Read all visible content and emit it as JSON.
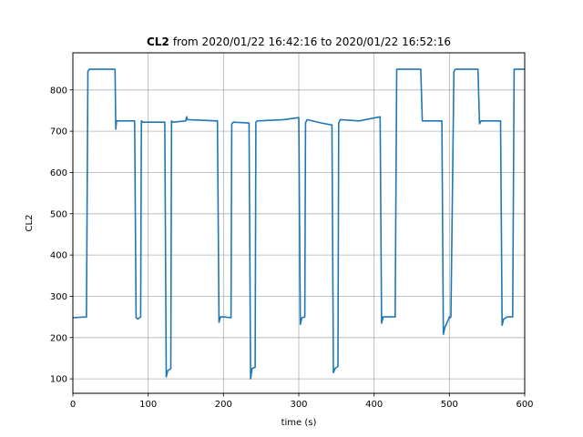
{
  "chart_data": {
    "type": "line",
    "title_bold": "CL2",
    "title_rest": "from 2020/01/22 16:42:16 to 2020/01/22 16:52:16",
    "xlabel": "time (s)",
    "ylabel": "CL2",
    "xlim": [
      0,
      600
    ],
    "ylim": [
      65,
      890
    ],
    "xticks": [
      0,
      100,
      200,
      300,
      400,
      500,
      600
    ],
    "yticks": [
      100,
      200,
      300,
      400,
      500,
      600,
      700,
      800
    ],
    "grid": true,
    "line_color": "#1f77b4",
    "series": [
      {
        "x": [
          0,
          18,
          20,
          22,
          56,
          57,
          58,
          82,
          84,
          86,
          90,
          91,
          93,
          122,
          124,
          126,
          130,
          131,
          133,
          150,
          151,
          152,
          192,
          194,
          196,
          200,
          210,
          211,
          213,
          234,
          236,
          238,
          242,
          243,
          245,
          280,
          300,
          302,
          304,
          308,
          309,
          311,
          330,
          344,
          346,
          348,
          352,
          353,
          355,
          380,
          408,
          410,
          412,
          416,
          428,
          430,
          462,
          464,
          466,
          490,
          492,
          494,
          499,
          500,
          501,
          502,
          506,
          508,
          538,
          540,
          542,
          568,
          570,
          572,
          577,
          584,
          586,
          600
        ],
        "y": [
          248,
          250,
          845,
          850,
          850,
          705,
          725,
          725,
          248,
          245,
          250,
          725,
          722,
          722,
          105,
          120,
          125,
          725,
          722,
          725,
          735,
          728,
          725,
          237,
          250,
          250,
          248,
          718,
          722,
          720,
          100,
          125,
          128,
          722,
          725,
          728,
          733,
          232,
          248,
          250,
          720,
          728,
          720,
          715,
          115,
          125,
          130,
          720,
          728,
          725,
          735,
          235,
          250,
          250,
          250,
          850,
          850,
          725,
          725,
          725,
          208,
          225,
          245,
          250,
          248,
          250,
          845,
          850,
          850,
          718,
          725,
          725,
          230,
          245,
          250,
          250,
          850,
          850
        ]
      }
    ]
  }
}
